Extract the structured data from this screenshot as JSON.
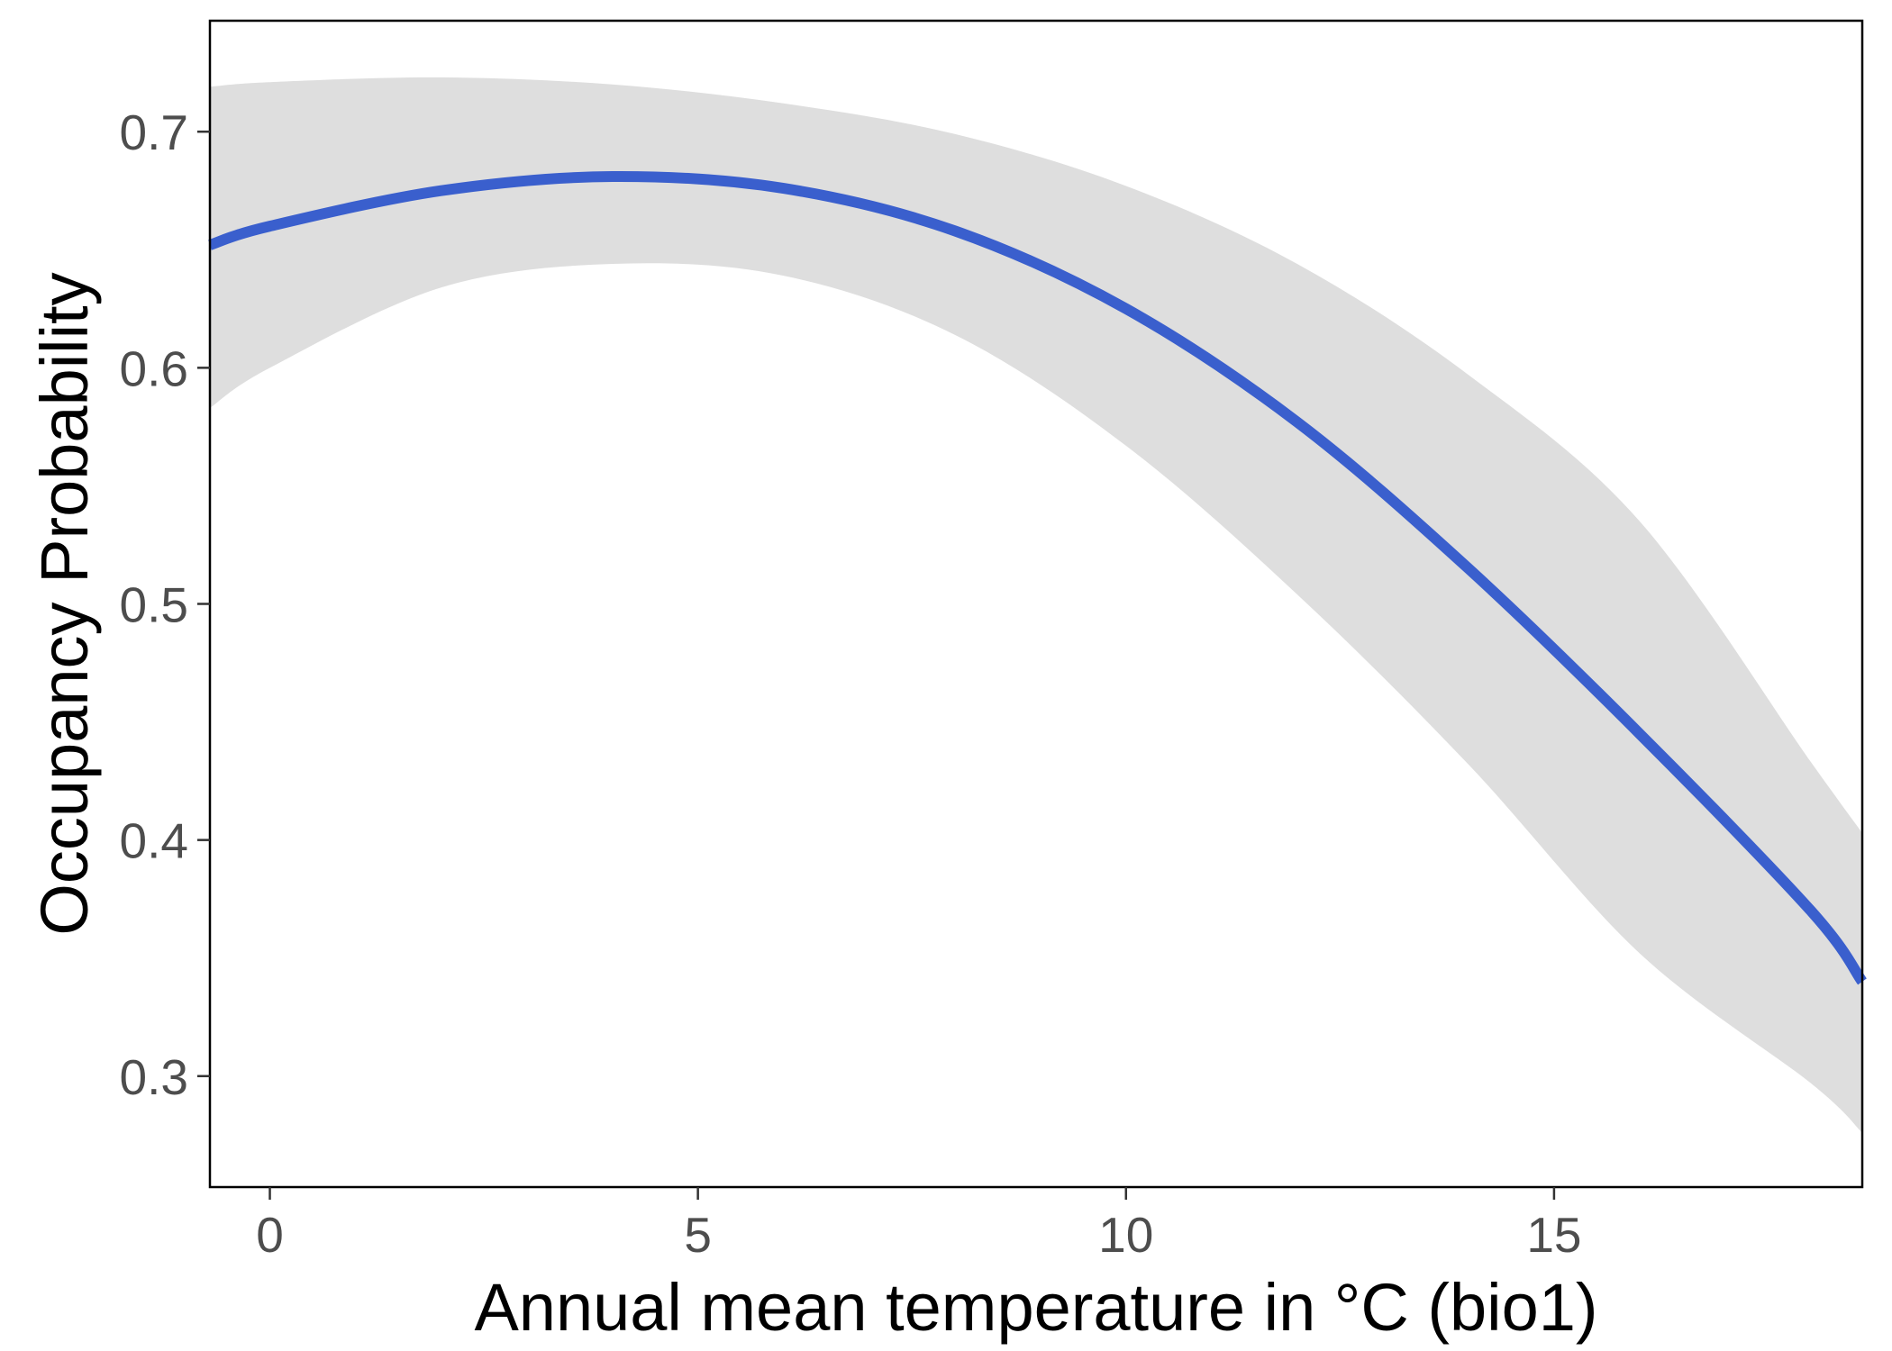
{
  "chart_data": {
    "type": "line",
    "title": "",
    "xlabel": "Annual mean temperature in °C (bio1)",
    "ylabel": "Occupancy Probability",
    "xlim": [
      -0.7,
      18.6
    ],
    "ylim": [
      0.253,
      0.747
    ],
    "x_ticks": [
      0,
      5,
      10,
      15
    ],
    "y_ticks": [
      0.3,
      0.4,
      0.5,
      0.6,
      0.7
    ],
    "x_tick_labels": [
      "0",
      "5",
      "10",
      "15"
    ],
    "y_tick_labels": [
      "0.3",
      "0.4",
      "0.5",
      "0.6",
      "0.7"
    ],
    "grid": false,
    "legend": "none",
    "colors": {
      "line": "#3a5fcd",
      "ribbon": "#dedede",
      "frame": "#000000"
    },
    "series": [
      {
        "x": [
          -0.7,
          0,
          2,
          4,
          6,
          8,
          10,
          12,
          14,
          16,
          18,
          18.6
        ],
        "y": [
          0.652,
          0.66,
          0.675,
          0.681,
          0.676,
          0.658,
          0.625,
          0.577,
          0.515,
          0.445,
          0.37,
          0.34
        ],
        "ci_lower": [
          0.583,
          0.6,
          0.634,
          0.644,
          0.639,
          0.614,
          0.567,
          0.504,
          0.432,
          0.352,
          0.297,
          0.276
        ],
        "ci_upper": [
          0.719,
          0.721,
          0.723,
          0.72,
          0.712,
          0.699,
          0.677,
          0.644,
          0.597,
          0.535,
          0.433,
          0.403
        ]
      }
    ]
  }
}
